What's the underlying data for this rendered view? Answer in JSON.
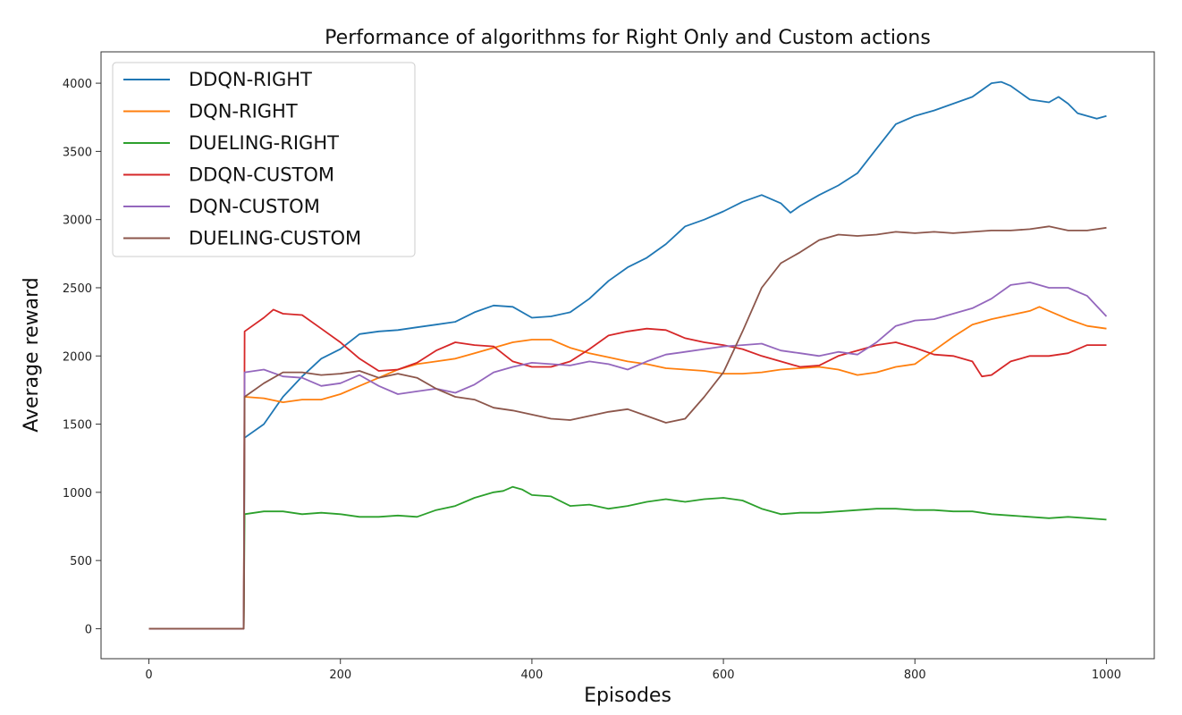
{
  "chart_data": {
    "type": "line",
    "title": "Performance of algorithms for Right Only and Custom actions",
    "xlabel": "Episodes",
    "ylabel": "Average reward",
    "xlim": [
      -50,
      1050
    ],
    "ylim": [
      -220,
      4230
    ],
    "xticks": [
      0,
      200,
      400,
      600,
      800,
      1000
    ],
    "yticks": [
      0,
      500,
      1000,
      1500,
      2000,
      2500,
      3000,
      3500,
      4000
    ],
    "grid": false,
    "legend_position": "top-left",
    "series": [
      {
        "name": "DDQN-RIGHT",
        "color": "#1f77b4",
        "points": [
          [
            0,
            0
          ],
          [
            99,
            0
          ],
          [
            100,
            1400
          ],
          [
            120,
            1500
          ],
          [
            140,
            1700
          ],
          [
            160,
            1850
          ],
          [
            180,
            1980
          ],
          [
            200,
            2050
          ],
          [
            220,
            2160
          ],
          [
            240,
            2180
          ],
          [
            260,
            2190
          ],
          [
            280,
            2210
          ],
          [
            300,
            2230
          ],
          [
            320,
            2250
          ],
          [
            340,
            2320
          ],
          [
            360,
            2370
          ],
          [
            380,
            2360
          ],
          [
            400,
            2280
          ],
          [
            420,
            2290
          ],
          [
            440,
            2320
          ],
          [
            460,
            2420
          ],
          [
            480,
            2550
          ],
          [
            500,
            2650
          ],
          [
            520,
            2720
          ],
          [
            540,
            2820
          ],
          [
            560,
            2950
          ],
          [
            580,
            3000
          ],
          [
            600,
            3060
          ],
          [
            620,
            3130
          ],
          [
            640,
            3180
          ],
          [
            660,
            3120
          ],
          [
            670,
            3050
          ],
          [
            680,
            3100
          ],
          [
            700,
            3180
          ],
          [
            720,
            3250
          ],
          [
            740,
            3340
          ],
          [
            760,
            3520
          ],
          [
            780,
            3700
          ],
          [
            800,
            3760
          ],
          [
            820,
            3800
          ],
          [
            840,
            3850
          ],
          [
            860,
            3900
          ],
          [
            880,
            4000
          ],
          [
            890,
            4010
          ],
          [
            900,
            3980
          ],
          [
            920,
            3880
          ],
          [
            940,
            3860
          ],
          [
            950,
            3900
          ],
          [
            960,
            3850
          ],
          [
            970,
            3780
          ],
          [
            980,
            3760
          ],
          [
            990,
            3740
          ],
          [
            1000,
            3760
          ]
        ]
      },
      {
        "name": "DQN-RIGHT",
        "color": "#ff7f0e",
        "points": [
          [
            0,
            0
          ],
          [
            99,
            0
          ],
          [
            100,
            1700
          ],
          [
            120,
            1690
          ],
          [
            140,
            1660
          ],
          [
            160,
            1680
          ],
          [
            180,
            1680
          ],
          [
            200,
            1720
          ],
          [
            220,
            1780
          ],
          [
            240,
            1840
          ],
          [
            260,
            1900
          ],
          [
            280,
            1940
          ],
          [
            300,
            1960
          ],
          [
            320,
            1980
          ],
          [
            340,
            2020
          ],
          [
            360,
            2060
          ],
          [
            380,
            2100
          ],
          [
            400,
            2120
          ],
          [
            420,
            2120
          ],
          [
            440,
            2060
          ],
          [
            460,
            2020
          ],
          [
            480,
            1990
          ],
          [
            500,
            1960
          ],
          [
            520,
            1940
          ],
          [
            540,
            1910
          ],
          [
            560,
            1900
          ],
          [
            580,
            1890
          ],
          [
            600,
            1870
          ],
          [
            620,
            1870
          ],
          [
            640,
            1880
          ],
          [
            660,
            1900
          ],
          [
            680,
            1910
          ],
          [
            700,
            1920
          ],
          [
            720,
            1900
          ],
          [
            740,
            1860
          ],
          [
            760,
            1880
          ],
          [
            780,
            1920
          ],
          [
            800,
            1940
          ],
          [
            820,
            2040
          ],
          [
            840,
            2140
          ],
          [
            860,
            2230
          ],
          [
            880,
            2270
          ],
          [
            900,
            2300
          ],
          [
            920,
            2330
          ],
          [
            930,
            2360
          ],
          [
            940,
            2330
          ],
          [
            960,
            2270
          ],
          [
            980,
            2220
          ],
          [
            1000,
            2200
          ]
        ]
      },
      {
        "name": "DUELING-RIGHT",
        "color": "#2ca02c",
        "points": [
          [
            0,
            0
          ],
          [
            99,
            0
          ],
          [
            100,
            840
          ],
          [
            120,
            860
          ],
          [
            140,
            860
          ],
          [
            160,
            840
          ],
          [
            180,
            850
          ],
          [
            200,
            840
          ],
          [
            220,
            820
          ],
          [
            240,
            820
          ],
          [
            260,
            830
          ],
          [
            280,
            820
          ],
          [
            300,
            870
          ],
          [
            320,
            900
          ],
          [
            340,
            960
          ],
          [
            360,
            1000
          ],
          [
            370,
            1010
          ],
          [
            380,
            1040
          ],
          [
            390,
            1020
          ],
          [
            400,
            980
          ],
          [
            420,
            970
          ],
          [
            440,
            900
          ],
          [
            460,
            910
          ],
          [
            480,
            880
          ],
          [
            500,
            900
          ],
          [
            520,
            930
          ],
          [
            540,
            950
          ],
          [
            560,
            930
          ],
          [
            580,
            950
          ],
          [
            600,
            960
          ],
          [
            620,
            940
          ],
          [
            640,
            880
          ],
          [
            660,
            840
          ],
          [
            680,
            850
          ],
          [
            700,
            850
          ],
          [
            720,
            860
          ],
          [
            740,
            870
          ],
          [
            760,
            880
          ],
          [
            780,
            880
          ],
          [
            800,
            870
          ],
          [
            820,
            870
          ],
          [
            840,
            860
          ],
          [
            860,
            860
          ],
          [
            880,
            840
          ],
          [
            900,
            830
          ],
          [
            920,
            820
          ],
          [
            940,
            810
          ],
          [
            960,
            820
          ],
          [
            980,
            810
          ],
          [
            1000,
            800
          ]
        ]
      },
      {
        "name": "DDQN-CUSTOM",
        "color": "#d62728",
        "points": [
          [
            0,
            0
          ],
          [
            99,
            0
          ],
          [
            100,
            2180
          ],
          [
            110,
            2230
          ],
          [
            120,
            2280
          ],
          [
            130,
            2340
          ],
          [
            140,
            2310
          ],
          [
            160,
            2300
          ],
          [
            180,
            2200
          ],
          [
            200,
            2100
          ],
          [
            220,
            1980
          ],
          [
            240,
            1890
          ],
          [
            260,
            1900
          ],
          [
            280,
            1950
          ],
          [
            300,
            2040
          ],
          [
            320,
            2100
          ],
          [
            340,
            2080
          ],
          [
            360,
            2070
          ],
          [
            380,
            1960
          ],
          [
            400,
            1920
          ],
          [
            420,
            1920
          ],
          [
            440,
            1960
          ],
          [
            460,
            2050
          ],
          [
            480,
            2150
          ],
          [
            500,
            2180
          ],
          [
            520,
            2200
          ],
          [
            540,
            2190
          ],
          [
            560,
            2130
          ],
          [
            580,
            2100
          ],
          [
            600,
            2080
          ],
          [
            620,
            2050
          ],
          [
            640,
            2000
          ],
          [
            660,
            1960
          ],
          [
            680,
            1920
          ],
          [
            700,
            1930
          ],
          [
            720,
            2000
          ],
          [
            740,
            2040
          ],
          [
            760,
            2080
          ],
          [
            780,
            2100
          ],
          [
            800,
            2060
          ],
          [
            820,
            2010
          ],
          [
            840,
            2000
          ],
          [
            860,
            1960
          ],
          [
            870,
            1850
          ],
          [
            880,
            1860
          ],
          [
            900,
            1960
          ],
          [
            920,
            2000
          ],
          [
            940,
            2000
          ],
          [
            960,
            2020
          ],
          [
            980,
            2080
          ],
          [
            1000,
            2080
          ]
        ]
      },
      {
        "name": "DQN-CUSTOM",
        "color": "#9467bd",
        "points": [
          [
            0,
            0
          ],
          [
            99,
            0
          ],
          [
            100,
            1880
          ],
          [
            120,
            1900
          ],
          [
            140,
            1850
          ],
          [
            160,
            1840
          ],
          [
            180,
            1780
          ],
          [
            200,
            1800
          ],
          [
            220,
            1860
          ],
          [
            240,
            1780
          ],
          [
            260,
            1720
          ],
          [
            280,
            1740
          ],
          [
            300,
            1760
          ],
          [
            320,
            1730
          ],
          [
            340,
            1790
          ],
          [
            360,
            1880
          ],
          [
            380,
            1920
          ],
          [
            400,
            1950
          ],
          [
            420,
            1940
          ],
          [
            440,
            1930
          ],
          [
            460,
            1960
          ],
          [
            480,
            1940
          ],
          [
            500,
            1900
          ],
          [
            520,
            1960
          ],
          [
            540,
            2010
          ],
          [
            560,
            2030
          ],
          [
            580,
            2050
          ],
          [
            600,
            2070
          ],
          [
            620,
            2080
          ],
          [
            640,
            2090
          ],
          [
            660,
            2040
          ],
          [
            680,
            2020
          ],
          [
            700,
            2000
          ],
          [
            720,
            2030
          ],
          [
            740,
            2010
          ],
          [
            760,
            2100
          ],
          [
            780,
            2220
          ],
          [
            800,
            2260
          ],
          [
            820,
            2270
          ],
          [
            840,
            2310
          ],
          [
            860,
            2350
          ],
          [
            880,
            2420
          ],
          [
            900,
            2520
          ],
          [
            920,
            2540
          ],
          [
            940,
            2500
          ],
          [
            960,
            2500
          ],
          [
            980,
            2440
          ],
          [
            1000,
            2290
          ]
        ]
      },
      {
        "name": "DUELING-CUSTOM",
        "color": "#8c564b",
        "points": [
          [
            0,
            0
          ],
          [
            99,
            0
          ],
          [
            100,
            1700
          ],
          [
            120,
            1800
          ],
          [
            140,
            1880
          ],
          [
            160,
            1880
          ],
          [
            180,
            1860
          ],
          [
            200,
            1870
          ],
          [
            220,
            1890
          ],
          [
            240,
            1840
          ],
          [
            260,
            1870
          ],
          [
            280,
            1840
          ],
          [
            300,
            1760
          ],
          [
            320,
            1700
          ],
          [
            340,
            1680
          ],
          [
            360,
            1620
          ],
          [
            380,
            1600
          ],
          [
            400,
            1570
          ],
          [
            420,
            1540
          ],
          [
            440,
            1530
          ],
          [
            460,
            1560
          ],
          [
            480,
            1590
          ],
          [
            500,
            1610
          ],
          [
            520,
            1560
          ],
          [
            540,
            1510
          ],
          [
            560,
            1540
          ],
          [
            580,
            1700
          ],
          [
            600,
            1880
          ],
          [
            620,
            2180
          ],
          [
            640,
            2500
          ],
          [
            660,
            2680
          ],
          [
            680,
            2760
          ],
          [
            700,
            2850
          ],
          [
            720,
            2890
          ],
          [
            740,
            2880
          ],
          [
            760,
            2890
          ],
          [
            780,
            2910
          ],
          [
            800,
            2900
          ],
          [
            820,
            2910
          ],
          [
            840,
            2900
          ],
          [
            860,
            2910
          ],
          [
            880,
            2920
          ],
          [
            900,
            2920
          ],
          [
            920,
            2930
          ],
          [
            940,
            2950
          ],
          [
            960,
            2920
          ],
          [
            980,
            2920
          ],
          [
            1000,
            2940
          ]
        ]
      }
    ]
  }
}
